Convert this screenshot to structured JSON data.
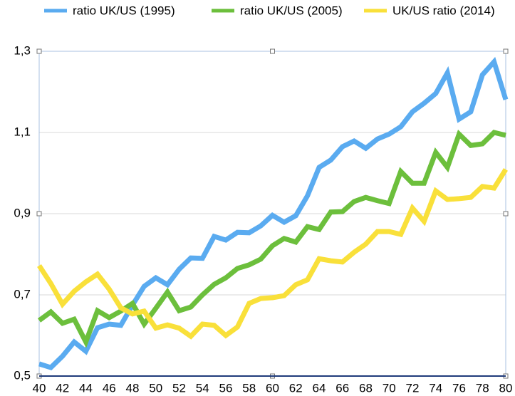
{
  "chart_data": {
    "type": "line",
    "x": [
      40,
      41,
      42,
      43,
      44,
      45,
      46,
      47,
      48,
      49,
      50,
      51,
      52,
      53,
      54,
      55,
      56,
      57,
      58,
      59,
      60,
      61,
      62,
      63,
      64,
      65,
      66,
      67,
      68,
      69,
      70,
      71,
      72,
      73,
      74,
      75,
      76,
      77,
      78,
      79,
      80
    ],
    "series": [
      {
        "name": "ratio UK/US (1995)",
        "color": "#5aabf0",
        "values": [
          0.53,
          0.521,
          0.549,
          0.584,
          0.561,
          0.619,
          0.628,
          0.625,
          0.675,
          0.721,
          0.742,
          0.725,
          0.763,
          0.791,
          0.79,
          0.844,
          0.835,
          0.854,
          0.853,
          0.87,
          0.896,
          0.879,
          0.895,
          0.944,
          1.014,
          1.032,
          1.065,
          1.079,
          1.061,
          1.084,
          1.096,
          1.114,
          1.151,
          1.172,
          1.196,
          1.247,
          1.133,
          1.151,
          1.242,
          1.274,
          1.181
        ]
      },
      {
        "name": "ratio UK/US (2005)",
        "color": "#6cbf3c",
        "values": [
          0.637,
          0.658,
          0.63,
          0.64,
          0.584,
          0.661,
          0.644,
          0.66,
          0.679,
          0.628,
          0.667,
          0.707,
          0.661,
          0.67,
          0.7,
          0.726,
          0.742,
          0.765,
          0.774,
          0.788,
          0.821,
          0.839,
          0.83,
          0.868,
          0.861,
          0.904,
          0.905,
          0.93,
          0.94,
          0.932,
          0.925,
          1.004,
          0.975,
          0.975,
          1.051,
          1.014,
          1.096,
          1.068,
          1.072,
          1.1,
          1.093
        ]
      },
      {
        "name": "UK/US ratio (2014)",
        "color": "#f9e03a",
        "values": [
          0.772,
          0.728,
          0.677,
          0.709,
          0.732,
          0.751,
          0.714,
          0.668,
          0.653,
          0.66,
          0.618,
          0.626,
          0.618,
          0.598,
          0.628,
          0.625,
          0.6,
          0.621,
          0.679,
          0.691,
          0.693,
          0.698,
          0.725,
          0.737,
          0.789,
          0.784,
          0.781,
          0.805,
          0.825,
          0.856,
          0.856,
          0.849,
          0.914,
          0.881,
          0.956,
          0.935,
          0.937,
          0.94,
          0.967,
          0.963,
          1.009
        ]
      }
    ],
    "xlim": [
      40,
      80
    ],
    "xticks": [
      40,
      42,
      44,
      46,
      48,
      50,
      52,
      54,
      56,
      58,
      60,
      62,
      64,
      66,
      68,
      70,
      72,
      74,
      76,
      78,
      80
    ],
    "ylim": [
      0.5,
      1.3
    ],
    "yticks": [
      {
        "value": 0.5,
        "label": "0,5"
      },
      {
        "value": 0.7,
        "label": "0,7"
      },
      {
        "value": 0.9,
        "label": "0,9"
      },
      {
        "value": 1.1,
        "label": "1,1"
      },
      {
        "value": 1.3,
        "label": "1,3"
      }
    ],
    "grid": true,
    "legend": "top"
  }
}
